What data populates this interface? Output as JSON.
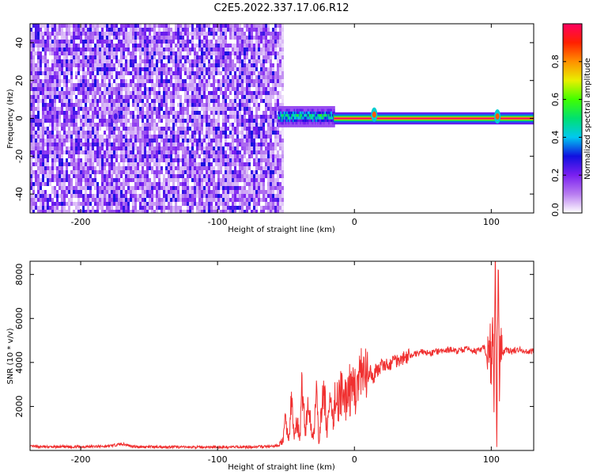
{
  "title": "C2E5.2022.337.17.06.R12",
  "chart_data": [
    {
      "type": "heatmap",
      "xlabel": "Height of straight line (km)",
      "ylabel": "Frequency (Hz)",
      "xlim": [
        -237,
        131
      ],
      "ylim": [
        -50,
        50
      ],
      "xticks": [
        -200,
        -100,
        0,
        100
      ],
      "yticks": [
        -40,
        -20,
        0,
        20,
        40
      ],
      "grid": false,
      "colorbar": {
        "label": "Normalized spectral amplitude",
        "range": [
          0,
          1
        ],
        "ticks": [
          0.0,
          0.2,
          0.4,
          0.6,
          0.8
        ],
        "tick_labels": [
          "0.0",
          "0.2",
          "0.4",
          "0.6",
          "0.8"
        ],
        "colormap": [
          "#ffffff",
          "#b87cf0",
          "#7a1ff0",
          "#1010e0",
          "#00c8f0",
          "#00e070",
          "#40ff00",
          "#e8f000",
          "#ff9000",
          "#ff2000",
          "#ff0060"
        ]
      },
      "regions": [
        {
          "x": [
            -237,
            -52
          ],
          "freq_range": [
            -50,
            50
          ],
          "amplitude": 0.05,
          "description": "broadband noise"
        },
        {
          "x": [
            -56,
            -15
          ],
          "freq_range": [
            -4,
            6
          ],
          "amplitude": 0.45
        },
        {
          "x": [
            -15,
            131
          ],
          "freq_center": 0,
          "amplitude": 1.0
        },
        {
          "x": [
            -177,
            -172
          ],
          "freq_center": 1,
          "amplitude": 0.25
        },
        {
          "x": [
            13,
            16
          ],
          "freq_center": 2,
          "amplitude": 0.85
        },
        {
          "x": [
            102,
            107
          ],
          "freq_center": 1,
          "amplitude": 0.85
        }
      ]
    },
    {
      "type": "line",
      "xlabel": "Height of straight line (km)",
      "ylabel": "SNR (10 * v/v)",
      "xlim": [
        -237,
        131
      ],
      "ylim": [
        0,
        8600
      ],
      "xticks": [
        -200,
        -100,
        0,
        100
      ],
      "yticks": [
        2000,
        4000,
        6000,
        8000
      ],
      "grid": false,
      "color": "#f03030",
      "series": [
        {
          "x": [
            -237,
            -220,
            -200,
            -180,
            -170,
            -160,
            -140,
            -120,
            -100,
            -80,
            -60,
            -55,
            -52,
            -50,
            -48,
            -46,
            -44,
            -42,
            -40,
            -38,
            -36,
            -34,
            -32,
            -30,
            -28,
            -26,
            -24,
            -22,
            -20,
            -18,
            -16,
            -14,
            -12,
            -10,
            -8,
            -6,
            -4,
            -2,
            0,
            2,
            4,
            6,
            8,
            10,
            12,
            14,
            16,
            18,
            20,
            22,
            24,
            26,
            28,
            30,
            35,
            40,
            45,
            50,
            55,
            60,
            65,
            70,
            75,
            80,
            85,
            90,
            95,
            97,
            99,
            100,
            101,
            102,
            103,
            104,
            105,
            106,
            107,
            108,
            110,
            115,
            120,
            125,
            131
          ],
          "y": [
            180,
            160,
            170,
            190,
            300,
            170,
            160,
            150,
            150,
            160,
            180,
            250,
            500,
            1500,
            400,
            2200,
            600,
            1400,
            500,
            3200,
            800,
            2000,
            1200,
            600,
            2600,
            400,
            1800,
            2600,
            900,
            2200,
            1200,
            2500,
            2200,
            2700,
            2100,
            2400,
            2900,
            2500,
            3000,
            2700,
            3400,
            3100,
            3300,
            3200,
            3600,
            3200,
            3800,
            3600,
            4000,
            3700,
            3900,
            3900,
            4100,
            4100,
            4200,
            4300,
            4400,
            4500,
            4400,
            4500,
            4500,
            4600,
            4500,
            4600,
            4600,
            4500,
            4700,
            4000,
            5000,
            3400,
            6500,
            2000,
            8600,
            300,
            8600,
            3000,
            5500,
            4300,
            4600,
            4500,
            4600,
            4500,
            4500
          ]
        }
      ]
    }
  ]
}
